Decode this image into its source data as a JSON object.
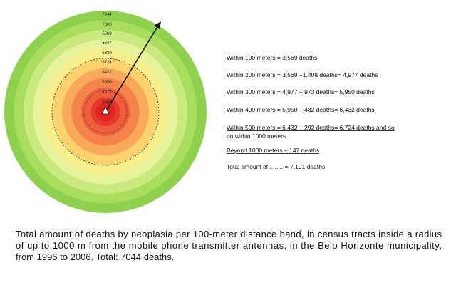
{
  "diagram": {
    "ring_labels": [
      "7044",
      "7000",
      "6869",
      "6347",
      "6889",
      "6724",
      "6432",
      "5950",
      "4977",
      "3569"
    ],
    "info_lines": [
      "Within   100 meters = 3,569 deaths",
      "Within   200 meters  =  3,569 +1,408 deaths= 4,977 deaths",
      "Within   300 meters  =  4,977 +   973 deaths= 5,950 deaths",
      "Within   400 meters  =  5,950  +  482 deaths= 6,432 deaths",
      "Within   500 meters  =  6,432   +   292 deaths= 6,724 deaths and so",
      "on within 1000 meters",
      "Beyond 1000 meters  +  147 deaths",
      "Total amount of .........= 7,191 deaths"
    ],
    "caption": [
      "Total amount of deaths by neoplasia per 100-meter distance band, in census tracts inside a radius",
      "of up to 1000 m from the mobile phone transmitter antennas, in the Belo Horizonte municipality,",
      "from 1996 to 2006. Total: 7044 deaths."
    ]
  }
}
